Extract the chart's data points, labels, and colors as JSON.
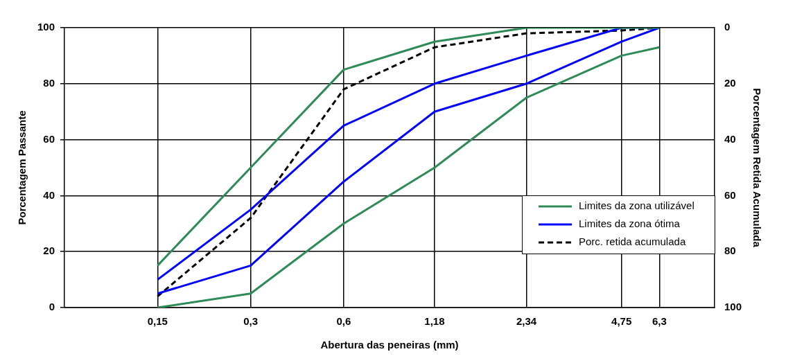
{
  "chart_data": {
    "type": "line",
    "xlabel": "Abertura das peneiras (mm)",
    "ylabel": "Porcentagem Passante",
    "y2label": "Porcentagem Retida Acumulada",
    "x": [
      0.15,
      0.3,
      0.6,
      1.18,
      2.34,
      4.75,
      6.3
    ],
    "log": "x",
    "xlim": [
      0.075,
      9.5
    ],
    "xticks": [
      {
        "value": 0.15,
        "label": "0,15"
      },
      {
        "value": 0.3,
        "label": "0,3"
      },
      {
        "value": 0.6,
        "label": "0,6"
      },
      {
        "value": 1.18,
        "label": "1,18"
      },
      {
        "value": 2.34,
        "label": "2,34"
      },
      {
        "value": 4.75,
        "label": "4,75"
      },
      {
        "value": 6.3,
        "label": "6,3"
      }
    ],
    "ylim": [
      0,
      100
    ],
    "yticks": [
      0,
      20,
      40,
      60,
      80,
      100
    ],
    "y2lim": [
      100,
      0
    ],
    "y2ticks": [
      0,
      20,
      40,
      60,
      80,
      100
    ],
    "series": [
      {
        "name": "Limites da zona utilizável",
        "color": "#2e8b57",
        "values": [
          15,
          50,
          85,
          95,
          100,
          100,
          100
        ]
      },
      {
        "color": "#2e8b57",
        "values": [
          0,
          5,
          30,
          50,
          75,
          90,
          93
        ]
      },
      {
        "name": "Limites da zona ótima",
        "color": "#0000ff",
        "values": [
          10,
          35,
          65,
          80,
          90,
          100,
          100
        ]
      },
      {
        "color": "#0000ff",
        "values": [
          5,
          15,
          45,
          70,
          80,
          95,
          100
        ]
      },
      {
        "name": "Porc. retida acumulada",
        "color": "#000000",
        "axis": "y2",
        "line_style": "dashed",
        "values": [
          96,
          68,
          22,
          7,
          2,
          1,
          0
        ]
      }
    ],
    "grid": true,
    "legend": "right",
    "marker": "none"
  }
}
